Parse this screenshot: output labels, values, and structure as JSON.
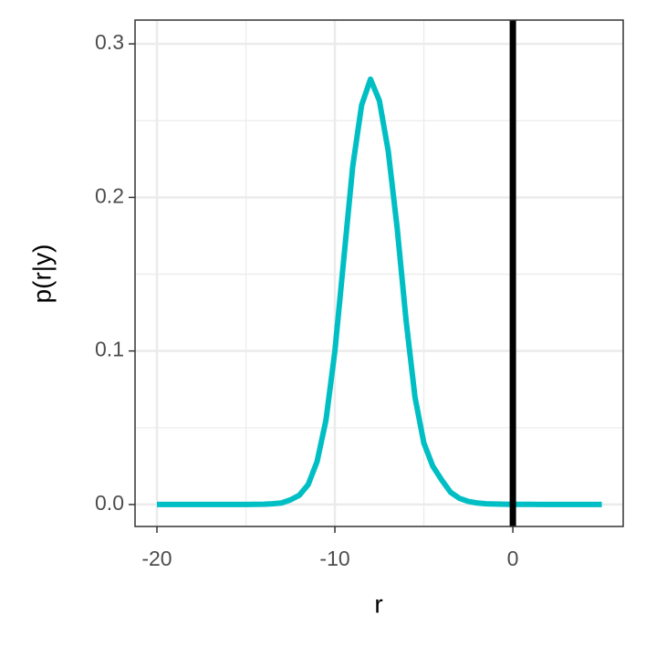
{
  "chart_data": {
    "type": "line",
    "xlabel": "r",
    "ylabel": "p(r|y)",
    "x": [
      -20,
      -19.5,
      -19,
      -18.5,
      -18,
      -17.5,
      -17,
      -16.5,
      -16,
      -15.5,
      -15,
      -14.5,
      -14,
      -13.5,
      -13,
      -12.5,
      -12,
      -11.5,
      -11,
      -10.5,
      -10,
      -9.5,
      -9,
      -8.5,
      -8,
      -7.5,
      -7,
      -6.5,
      -6,
      -5.5,
      -5,
      -4.5,
      -4,
      -3.5,
      -3,
      -2.5,
      -2,
      -1.5,
      -1,
      -0.5,
      0,
      0.5,
      1,
      1.5,
      2,
      2.5,
      3,
      3.5,
      4,
      4.5,
      5
    ],
    "series": [
      {
        "color": "#00bfc4",
        "values": [
          0,
          0,
          0,
          0,
          0,
          0,
          0,
          0,
          0,
          0,
          0,
          0.0001,
          0.0002,
          0.0005,
          0.001,
          0.003,
          0.006,
          0.013,
          0.028,
          0.055,
          0.1,
          0.16,
          0.22,
          0.26,
          0.277,
          0.263,
          0.23,
          0.18,
          0.12,
          0.07,
          0.04,
          0.025,
          0.016,
          0.008,
          0.004,
          0.002,
          0.001,
          0.0005,
          0.0003,
          0.0002,
          0.0001,
          0.0001,
          0.0001,
          0,
          0,
          0,
          0,
          0,
          0,
          0,
          0
        ]
      }
    ],
    "vline": 0,
    "vline_color": "#000000",
    "xlim": [
      -21.23,
      6.2
    ],
    "ylim": [
      -0.0143,
      0.3155
    ],
    "xticks": [
      -20,
      -10,
      0
    ],
    "yticks": [
      {
        "value": 0,
        "label": "0.0"
      },
      0.1,
      0.2,
      0.3
    ],
    "minor_xticks": [
      -15,
      -5
    ],
    "minor_yticks": [
      0.05,
      0.15,
      0.25
    ],
    "grid": true
  }
}
